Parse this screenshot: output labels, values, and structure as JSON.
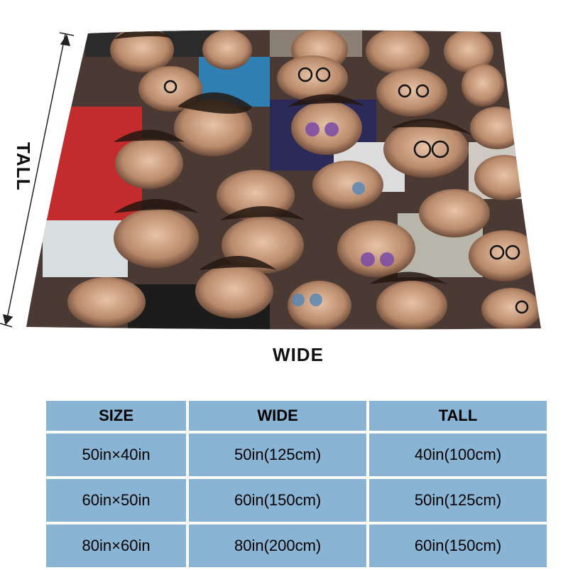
{
  "diagram": {
    "tall_label": "TALL",
    "wide_label": "WIDE"
  },
  "table": {
    "headers": [
      "SIZE",
      "WIDE",
      "TALL"
    ],
    "rows": [
      [
        "50in×40in",
        "50in(125cm)",
        "40in(100cm)"
      ],
      [
        "60in×50in",
        "60in(150cm)",
        "50in(125cm)"
      ],
      [
        "80in×60in",
        "80in(200cm)",
        "60in(150cm)"
      ]
    ]
  },
  "colors": {
    "table_cell": "#8ab4d4",
    "text": "#111111"
  }
}
